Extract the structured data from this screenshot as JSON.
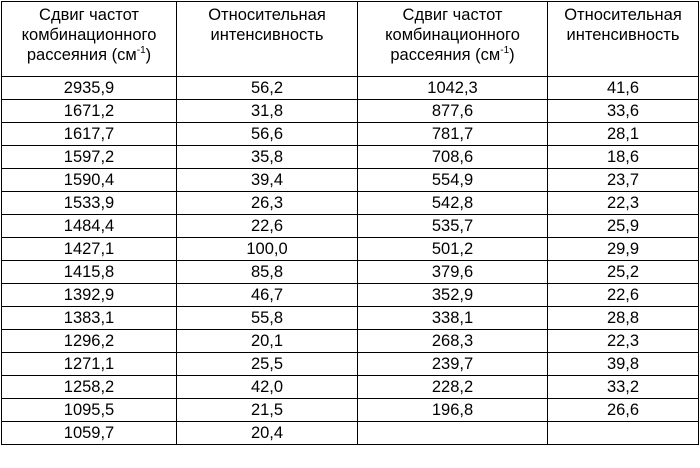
{
  "headers": {
    "shift": {
      "line1": "Сдвиг частот",
      "line2": "комбинационного",
      "line3_prefix": "рассеяния (см",
      "sup": "-1",
      "line3_suffix": ")"
    },
    "intensity": {
      "line1": "Относительная",
      "line2": "интенсивность"
    }
  },
  "left": [
    {
      "shift": "2935,9",
      "intensity": "56,2"
    },
    {
      "shift": "1671,2",
      "intensity": "31,8"
    },
    {
      "shift": "1617,7",
      "intensity": "56,6"
    },
    {
      "shift": "1597,2",
      "intensity": "35,8"
    },
    {
      "shift": "1590,4",
      "intensity": "39,4"
    },
    {
      "shift": "1533,9",
      "intensity": "26,3"
    },
    {
      "shift": "1484,4",
      "intensity": "22,6"
    },
    {
      "shift": "1427,1",
      "intensity": "100,0"
    },
    {
      "shift": "1415,8",
      "intensity": "85,8"
    },
    {
      "shift": "1392,9",
      "intensity": "46,7"
    },
    {
      "shift": "1383,1",
      "intensity": "55,8"
    },
    {
      "shift": "1296,2",
      "intensity": "20,1"
    },
    {
      "shift": "1271,1",
      "intensity": "25,5"
    },
    {
      "shift": "1258,2",
      "intensity": "42,0"
    },
    {
      "shift": "1095,5",
      "intensity": "21,5"
    },
    {
      "shift": "1059,7",
      "intensity": "20,4"
    }
  ],
  "right": [
    {
      "shift": "1042,3",
      "intensity": "41,6"
    },
    {
      "shift": "877,6",
      "intensity": "33,6"
    },
    {
      "shift": "781,7",
      "intensity": "28,1"
    },
    {
      "shift": "708,6",
      "intensity": "18,6"
    },
    {
      "shift": "554,9",
      "intensity": "23,7"
    },
    {
      "shift": "542,8",
      "intensity": "22,3"
    },
    {
      "shift": "535,7",
      "intensity": "25,9"
    },
    {
      "shift": "501,2",
      "intensity": "29,9"
    },
    {
      "shift": "379,6",
      "intensity": "25,2"
    },
    {
      "shift": "352,9",
      "intensity": "22,6"
    },
    {
      "shift": "338,1",
      "intensity": "28,8"
    },
    {
      "shift": "268,3",
      "intensity": "22,3"
    },
    {
      "shift": "239,7",
      "intensity": "39,8"
    },
    {
      "shift": "228,2",
      "intensity": "33,2"
    },
    {
      "shift": "196,8",
      "intensity": "26,6"
    },
    {
      "shift": "",
      "intensity": ""
    }
  ]
}
